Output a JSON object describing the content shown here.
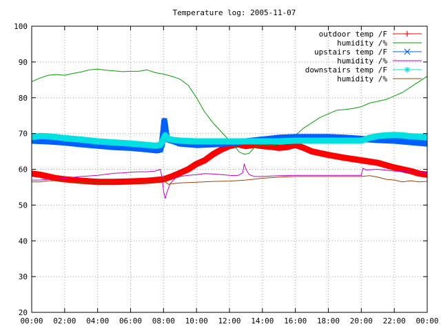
{
  "chart_data": {
    "type": "line",
    "title": "Temperature log: 2005-11-07",
    "xlabel": "",
    "ylabel": "",
    "xlim": [
      0,
      24
    ],
    "ylim": [
      20,
      100
    ],
    "x_ticks": [
      "00:00",
      "02:00",
      "04:00",
      "06:00",
      "08:00",
      "10:00",
      "12:00",
      "14:00",
      "16:00",
      "18:00",
      "20:00",
      "22:00",
      "00:00"
    ],
    "y_ticks": [
      "20",
      "30",
      "40",
      "50",
      "60",
      "70",
      "80",
      "90",
      "100"
    ],
    "grid": true,
    "legend_position": "top-right",
    "series": [
      {
        "name": "outdoor temp /F",
        "color": "#ff0000",
        "marker": "plus",
        "x": [
          0,
          0.5,
          1,
          1.5,
          2,
          3,
          4,
          5,
          6,
          7,
          7.5,
          8,
          8.5,
          9,
          9.5,
          10,
          10.5,
          11,
          11.5,
          12,
          12.5,
          13,
          13.5,
          14,
          14.5,
          15,
          15.5,
          16,
          16.5,
          17,
          18,
          19,
          20,
          21,
          22,
          22.5,
          23,
          23.5,
          24
        ],
        "y": [
          58.8,
          58.5,
          58,
          57.5,
          57.2,
          56.8,
          56.5,
          56.5,
          56.6,
          56.8,
          57,
          57.2,
          58,
          59,
          60,
          61.5,
          62.5,
          64.2,
          65.5,
          66.5,
          67,
          66.5,
          66.8,
          66.5,
          66.3,
          66,
          66.2,
          66.8,
          66,
          65,
          64,
          63.2,
          62.5,
          61.8,
          60.5,
          60,
          59.5,
          58.8,
          58.5
        ]
      },
      {
        "name": "humidity /%",
        "color": "#00a000",
        "marker": "none",
        "x": [
          0,
          0.5,
          1,
          1.5,
          2,
          2.5,
          3,
          3.5,
          4,
          4.5,
          5,
          5.5,
          6,
          6.5,
          7,
          7.5,
          8,
          8.5,
          9,
          9.5,
          10,
          10.5,
          11,
          11.5,
          12,
          12.3,
          12.6,
          12.9,
          13.2,
          13.5,
          14,
          14.5,
          15,
          15.5,
          16,
          16.5,
          17,
          17.5,
          18,
          18.5,
          19,
          19.5,
          20,
          20.5,
          21,
          21.5,
          22,
          22.5,
          23,
          23.5,
          24
        ],
        "y": [
          84.5,
          85.5,
          86.3,
          86.5,
          86.3,
          86.8,
          87.2,
          87.8,
          88,
          87.7,
          87.5,
          87.3,
          87.4,
          87.4,
          87.8,
          87,
          86.6,
          86,
          85.2,
          83.5,
          80,
          76,
          73,
          70.5,
          68,
          66.5,
          64.8,
          64.2,
          64.5,
          66,
          67,
          66.5,
          67,
          68.5,
          69.5,
          71.5,
          73,
          74.5,
          75.5,
          76.5,
          76.7,
          77,
          77.5,
          78.5,
          79,
          79.5,
          80.5,
          81.5,
          83,
          84.5,
          86
        ]
      },
      {
        "name": "upstairs temp /F",
        "color": "#0060ff",
        "marker": "x",
        "x": [
          0,
          1,
          2,
          3,
          4,
          5,
          6,
          7,
          7.6,
          7.8,
          7.9,
          8,
          8.05,
          8.1,
          8.15,
          8.2,
          8.3,
          8.5,
          9,
          10,
          11,
          12,
          13,
          14,
          15,
          16,
          17,
          18,
          19,
          20,
          21,
          22,
          23,
          24
        ],
        "y": [
          68,
          67.8,
          67.5,
          67,
          66.6,
          66.2,
          66,
          65.6,
          65.3,
          65.5,
          67,
          71,
          73.5,
          72,
          70,
          69,
          68.3,
          68,
          67.2,
          66.8,
          67,
          67.3,
          67.8,
          68.3,
          68.8,
          69,
          69,
          69,
          68.8,
          68.5,
          68.2,
          68,
          67.6,
          67.2
        ]
      },
      {
        "name": "humidity /%",
        "color": "#c000c0",
        "marker": "none",
        "x": [
          0,
          0.5,
          1,
          2,
          3,
          4,
          4.5,
          5,
          5.5,
          6,
          6.5,
          7,
          7.5,
          7.8,
          7.9,
          8,
          8.1,
          8.2,
          8.4,
          8.7,
          9,
          9.5,
          10,
          10.5,
          11,
          11.5,
          12,
          12.5,
          12.8,
          12.9,
          13,
          13.2,
          13.5,
          14,
          15,
          16,
          17,
          18,
          19,
          20,
          20.1,
          20.3,
          21,
          22,
          23,
          24
        ],
        "y": [
          57,
          57,
          57.2,
          57.5,
          58,
          58.3,
          58.6,
          58.9,
          59,
          59.2,
          59.3,
          59.3,
          59.5,
          60,
          58,
          54,
          51.8,
          53.5,
          56,
          57.5,
          58,
          58.3,
          58.5,
          58.8,
          58.7,
          58.5,
          58.3,
          58.2,
          59,
          61.5,
          60,
          58.5,
          58,
          58,
          58.2,
          58.3,
          58.3,
          58.3,
          58.3,
          58.3,
          60.3,
          59.8,
          60,
          59.5,
          59.3,
          59
        ]
      },
      {
        "name": "downstairs temp /F",
        "color": "#00e0e0",
        "marker": "star",
        "x": [
          0,
          0.5,
          1,
          1.5,
          2,
          3,
          4,
          5,
          6,
          7,
          7.5,
          7.8,
          8,
          8.1,
          8.3,
          8.6,
          9,
          10,
          11,
          12,
          13,
          14,
          15,
          16,
          17,
          18,
          19,
          20,
          20.5,
          21,
          21.5,
          22,
          22.5,
          23,
          24
        ],
        "y": [
          69,
          69.3,
          69.2,
          69,
          68.7,
          68.3,
          67.8,
          67.5,
          67.2,
          66.8,
          66.6,
          66.8,
          68.5,
          69.5,
          68.5,
          68.2,
          68,
          67.8,
          67.8,
          67.8,
          67.8,
          67.8,
          67.8,
          68,
          68,
          68,
          68,
          68,
          68.8,
          69.3,
          69.5,
          69.6,
          69.5,
          69.2,
          69
        ]
      },
      {
        "name": "humidity /%",
        "color": "#a04000",
        "marker": "none",
        "x": [
          0,
          0.5,
          1,
          1.5,
          2,
          2.5,
          3,
          4,
          5,
          6,
          7,
          7.5,
          7.8,
          8,
          8.1,
          8.3,
          8.6,
          9,
          10,
          11,
          12,
          13,
          14,
          15,
          16,
          17,
          18,
          19,
          20,
          20.5,
          21,
          21.5,
          22,
          22.5,
          23,
          23.5,
          24
        ],
        "y": [
          56.5,
          56.5,
          56.8,
          56.8,
          56.5,
          56.5,
          56.3,
          56.3,
          56.5,
          56.5,
          56.4,
          56.5,
          57,
          58,
          56.5,
          55.8,
          56,
          56.2,
          56.4,
          56.6,
          56.7,
          57,
          57.5,
          57.8,
          58,
          58,
          58,
          58,
          58,
          58.2,
          57.8,
          57.2,
          57,
          56.5,
          56.8,
          56.5,
          56.6
        ]
      }
    ]
  }
}
